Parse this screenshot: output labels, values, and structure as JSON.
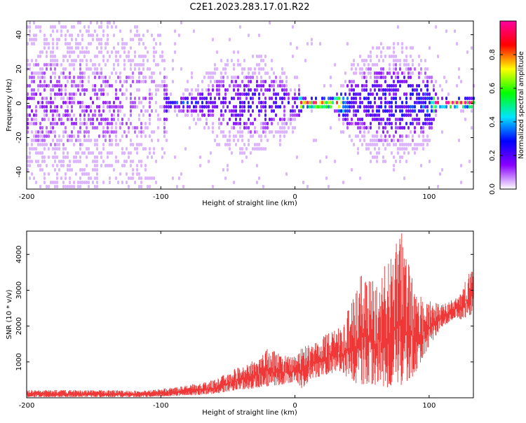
{
  "title": "C2E1.2023.283.17.01.R22",
  "chart_data": [
    {
      "type": "heatmap",
      "title": "C2E1.2023.283.17.01.R22",
      "xlabel": "Height of straight line (km)",
      "ylabel": "Frequency (Hz)",
      "xlim": [
        -200,
        133
      ],
      "ylim": [
        -50,
        48
      ],
      "x_ticks": [
        -200,
        -100,
        0,
        100
      ],
      "x_tick_labels": [
        "-200",
        "-100",
        "0",
        "100"
      ],
      "y_ticks": [
        -40,
        -20,
        0,
        20,
        40
      ],
      "y_tick_labels": [
        "-40",
        "-20",
        "0",
        "20",
        "40"
      ],
      "colorbar": {
        "label": "Normalized spectral amplitude",
        "range": [
          0.0,
          1.0
        ],
        "ticks": [
          0.0,
          0.2,
          0.4,
          0.6,
          0.8
        ],
        "tick_labels": [
          "0.0",
          "0.2",
          "0.4",
          "0.6",
          "0.8"
        ],
        "colormap": [
          "#ffffff",
          "#8a00ff",
          "#0000ff",
          "#00e5ff",
          "#00ff00",
          "#ffff00",
          "#ff0000",
          "#ff00a0"
        ]
      },
      "profile": [
        {
          "x": -200,
          "spread": 50,
          "amp": 0.12,
          "density": 0.55
        },
        {
          "x": -150,
          "spread": 50,
          "amp": 0.11,
          "density": 0.5
        },
        {
          "x": -110,
          "spread": 48,
          "amp": 0.09,
          "density": 0.35
        },
        {
          "x": -100,
          "spread": 45,
          "amp": 0.05,
          "density": 0.15
        },
        {
          "x": -95,
          "spread": 5,
          "amp": 0.28,
          "density": 0.9
        },
        {
          "x": -80,
          "spread": 6,
          "amp": 0.25,
          "density": 0.8
        },
        {
          "x": -60,
          "spread": 22,
          "amp": 0.16,
          "density": 0.55
        },
        {
          "x": -40,
          "spread": 28,
          "amp": 0.2,
          "density": 0.55
        },
        {
          "x": -20,
          "spread": 25,
          "amp": 0.2,
          "density": 0.5
        },
        {
          "x": 0,
          "spread": 14,
          "amp": 0.2,
          "density": 0.5
        },
        {
          "x": 5,
          "spread": 2,
          "amp": 0.85,
          "density": 0.9
        },
        {
          "x": 30,
          "spread": 4,
          "amp": 0.7,
          "density": 0.8
        },
        {
          "x": 40,
          "spread": 22,
          "amp": 0.2,
          "density": 0.6
        },
        {
          "x": 60,
          "spread": 32,
          "amp": 0.22,
          "density": 0.6
        },
        {
          "x": 80,
          "spread": 34,
          "amp": 0.24,
          "density": 0.6
        },
        {
          "x": 100,
          "spread": 22,
          "amp": 0.3,
          "density": 0.6
        },
        {
          "x": 105,
          "spread": 2,
          "amp": 0.9,
          "density": 0.9
        },
        {
          "x": 133,
          "spread": 3,
          "amp": 0.85,
          "density": 0.9
        }
      ]
    },
    {
      "type": "line",
      "xlabel": "Height of straight line (km)",
      "ylabel": "SNR (10 * v/v)",
      "xlim": [
        -200,
        133
      ],
      "ylim": [
        0,
        4650
      ],
      "x_ticks": [
        -200,
        -100,
        0,
        100
      ],
      "x_tick_labels": [
        "-200",
        "-100",
        "0",
        "100"
      ],
      "y_ticks": [
        1000,
        2000,
        3000,
        4000
      ],
      "y_tick_labels": [
        "1000",
        "2000",
        "3000",
        "4000"
      ],
      "color": "#ee3333",
      "series": [
        {
          "x": [
            -200,
            -150,
            -110,
            -100,
            -80,
            -60,
            -45,
            -30,
            -20,
            -10,
            0,
            5,
            15,
            25,
            35,
            40,
            50,
            60,
            70,
            80,
            90,
            100,
            110,
            120,
            125,
            133
          ],
          "low": [
            60,
            60,
            60,
            80,
            100,
            150,
            250,
            300,
            350,
            400,
            500,
            300,
            600,
            700,
            800,
            500,
            400,
            400,
            300,
            400,
            700,
            1500,
            2000,
            2300,
            2200,
            2400
          ],
          "high": [
            220,
            220,
            200,
            250,
            350,
            500,
            800,
            1100,
            1400,
            1200,
            1200,
            1400,
            1600,
            1900,
            2000,
            2500,
            3500,
            3300,
            3900,
            4650,
            2900,
            2700,
            2600,
            2800,
            3000,
            4050
          ]
        }
      ]
    }
  ]
}
